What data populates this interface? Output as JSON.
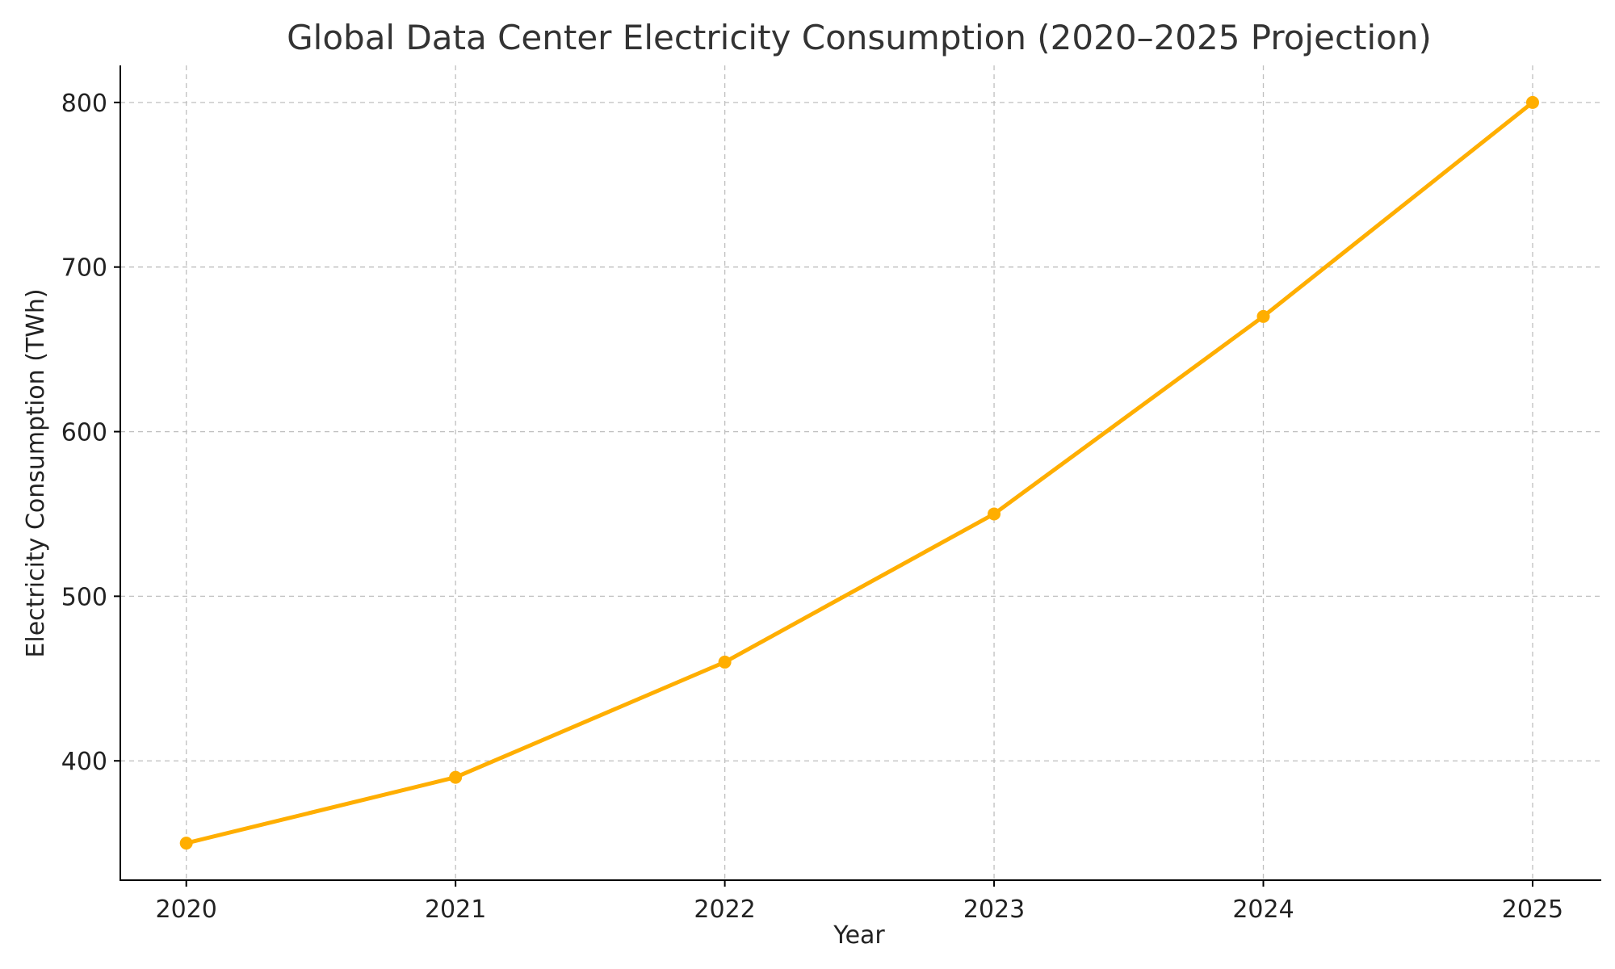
{
  "chart_data": {
    "type": "line",
    "title": "Global Data Center Electricity Consumption (2020–2025 Projection)",
    "xlabel": "Year",
    "ylabel": "Electricity Consumption (TWh)",
    "x": [
      "2020",
      "2021",
      "2022",
      "2023",
      "2024",
      "2025"
    ],
    "series": [
      {
        "values": [
          350,
          390,
          460,
          550,
          670,
          800
        ],
        "color": "#ffae00",
        "marker": "circle"
      }
    ],
    "xlim": [
      2019.755,
      2025.255
    ],
    "ylim": [
      327.5,
      822.5
    ],
    "yticks": [
      400,
      500,
      600,
      700,
      800
    ],
    "grid": true,
    "legend": "none"
  }
}
